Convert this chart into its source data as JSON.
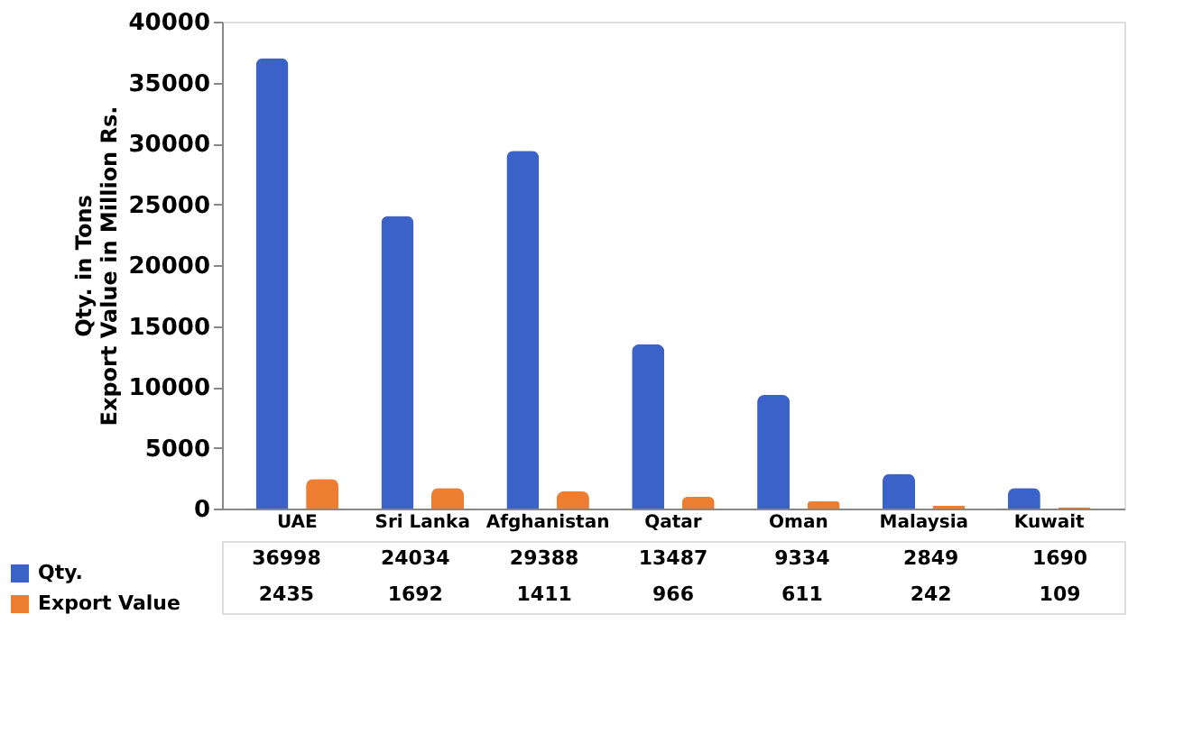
{
  "chart_data": {
    "type": "bar",
    "ylabel": "Qty. in Tons\nExport Value in Million Rs.",
    "categories": [
      "UAE",
      "Sri Lanka",
      "Afghanistan",
      "Qatar",
      "Oman",
      "Malaysia",
      "Kuwait"
    ],
    "series": [
      {
        "name": "Qty.",
        "color": "#3a62c8",
        "values": [
          36998,
          24034,
          29388,
          13487,
          9334,
          2849,
          1690
        ]
      },
      {
        "name": "Export Value",
        "color": "#ed7d31",
        "values": [
          2435,
          1692,
          1411,
          966,
          611,
          242,
          109
        ]
      }
    ],
    "ylim": [
      0,
      40000
    ],
    "yticks": [
      0,
      5000,
      10000,
      15000,
      20000,
      25000,
      30000,
      35000,
      40000
    ],
    "data_labels": true,
    "legend": "bottom left"
  }
}
